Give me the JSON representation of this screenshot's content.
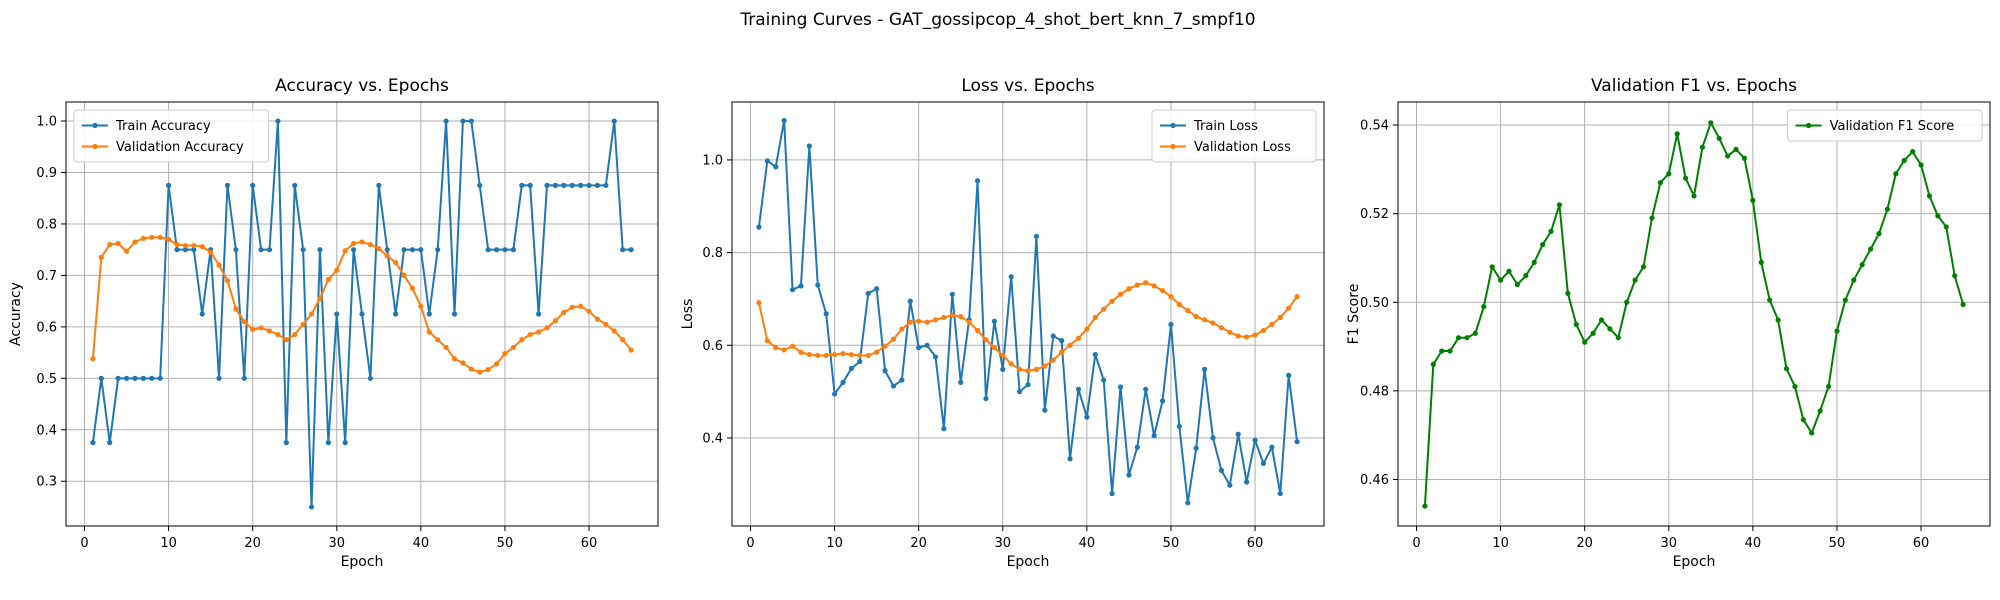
{
  "figure": {
    "suptitle": "Training Curves - GAT_gossipcop_4_shot_bert_knn_7_smpf10"
  },
  "colors": {
    "train": "#1f77b4",
    "validation": "#ff7f0e",
    "f1": "#008000",
    "grid": "#b0b0b0",
    "axes": "#000000"
  },
  "chart_data": [
    {
      "type": "line",
      "title": "Accuracy vs. Epochs",
      "xlabel": "Epoch",
      "ylabel": "Accuracy",
      "xlim": [
        -2.2,
        68.2
      ],
      "ylim": [
        0.213,
        1.037
      ],
      "xticks": [
        0,
        10,
        20,
        30,
        40,
        50,
        60
      ],
      "yticks": [
        0.3,
        0.4,
        0.5,
        0.6,
        0.7,
        0.8,
        0.9,
        1.0
      ],
      "ytick_labels": [
        "0.3",
        "0.4",
        "0.5",
        "0.6",
        "0.7",
        "0.8",
        "0.9",
        "1.0"
      ],
      "grid": true,
      "legend_position": "upper-left",
      "x": [
        1,
        2,
        3,
        4,
        5,
        6,
        7,
        8,
        9,
        10,
        11,
        12,
        13,
        14,
        15,
        16,
        17,
        18,
        19,
        20,
        21,
        22,
        23,
        24,
        25,
        26,
        27,
        28,
        29,
        30,
        31,
        32,
        33,
        34,
        35,
        36,
        37,
        38,
        39,
        40,
        41,
        42,
        43,
        44,
        45,
        46,
        47,
        48,
        49,
        50,
        51,
        52,
        53,
        54,
        55,
        56,
        57,
        58,
        59,
        60,
        61,
        62,
        63,
        64,
        65
      ],
      "series": [
        {
          "name": "Train Accuracy",
          "color": "#1f77b4",
          "values": [
            0.375,
            0.5,
            0.375,
            0.5,
            0.5,
            0.5,
            0.5,
            0.5,
            0.5,
            0.875,
            0.75,
            0.75,
            0.75,
            0.625,
            0.75,
            0.5,
            0.875,
            0.75,
            0.5,
            0.875,
            0.75,
            0.75,
            1.0,
            0.375,
            0.875,
            0.75,
            0.25,
            0.75,
            0.375,
            0.625,
            0.375,
            0.75,
            0.625,
            0.5,
            0.875,
            0.75,
            0.625,
            0.75,
            0.75,
            0.75,
            0.625,
            0.75,
            1.0,
            0.625,
            1.0,
            1.0,
            0.875,
            0.75,
            0.75,
            0.75,
            0.75,
            0.875,
            0.875,
            0.625,
            0.875,
            0.875,
            0.875,
            0.875,
            0.875,
            0.875,
            0.875,
            0.875,
            1.0,
            0.75,
            0.75
          ]
        },
        {
          "name": "Validation Accuracy",
          "color": "#ff7f0e",
          "values": [
            0.538,
            0.735,
            0.76,
            0.762,
            0.747,
            0.765,
            0.772,
            0.774,
            0.774,
            0.77,
            0.76,
            0.758,
            0.758,
            0.756,
            0.745,
            0.72,
            0.69,
            0.635,
            0.61,
            0.595,
            0.598,
            0.592,
            0.585,
            0.575,
            0.585,
            0.605,
            0.625,
            0.655,
            0.692,
            0.71,
            0.748,
            0.762,
            0.765,
            0.76,
            0.752,
            0.738,
            0.725,
            0.7,
            0.675,
            0.64,
            0.59,
            0.575,
            0.56,
            0.538,
            0.53,
            0.518,
            0.512,
            0.517,
            0.528,
            0.548,
            0.56,
            0.575,
            0.585,
            0.59,
            0.598,
            0.612,
            0.628,
            0.638,
            0.64,
            0.63,
            0.615,
            0.605,
            0.592,
            0.575,
            0.555
          ]
        }
      ]
    },
    {
      "type": "line",
      "title": "Loss vs. Epochs",
      "xlabel": "Epoch",
      "ylabel": "Loss",
      "xlim": [
        -2.2,
        68.2
      ],
      "ylim": [
        0.21,
        1.125
      ],
      "xticks": [
        0,
        10,
        20,
        30,
        40,
        50,
        60
      ],
      "yticks": [
        0.4,
        0.6,
        0.8,
        1.0
      ],
      "ytick_labels": [
        "0.4",
        "0.6",
        "0.8",
        "1.0"
      ],
      "grid": true,
      "legend_position": "upper-right",
      "x": [
        1,
        2,
        3,
        4,
        5,
        6,
        7,
        8,
        9,
        10,
        11,
        12,
        13,
        14,
        15,
        16,
        17,
        18,
        19,
        20,
        21,
        22,
        23,
        24,
        25,
        26,
        27,
        28,
        29,
        30,
        31,
        32,
        33,
        34,
        35,
        36,
        37,
        38,
        39,
        40,
        41,
        42,
        43,
        44,
        45,
        46,
        47,
        48,
        49,
        50,
        51,
        52,
        53,
        54,
        55,
        56,
        57,
        58,
        59,
        60,
        61,
        62,
        63,
        64,
        65
      ],
      "series": [
        {
          "name": "Train Loss",
          "color": "#1f77b4",
          "values": [
            0.855,
            0.998,
            0.985,
            1.085,
            0.72,
            0.728,
            1.03,
            0.73,
            0.668,
            0.495,
            0.52,
            0.55,
            0.565,
            0.712,
            0.722,
            0.545,
            0.512,
            0.525,
            0.695,
            0.595,
            0.6,
            0.575,
            0.42,
            0.71,
            0.52,
            0.655,
            0.955,
            0.485,
            0.652,
            0.548,
            0.748,
            0.5,
            0.515,
            0.835,
            0.46,
            0.62,
            0.61,
            0.355,
            0.505,
            0.445,
            0.58,
            0.525,
            0.28,
            0.51,
            0.32,
            0.38,
            0.505,
            0.405,
            0.48,
            0.645,
            0.425,
            0.26,
            0.378,
            0.548,
            0.4,
            0.33,
            0.298,
            0.408,
            0.305,
            0.395,
            0.345,
            0.38,
            0.28,
            0.535,
            0.392
          ]
        },
        {
          "name": "Validation Loss",
          "color": "#ff7f0e",
          "values": [
            0.692,
            0.61,
            0.595,
            0.59,
            0.598,
            0.585,
            0.58,
            0.578,
            0.578,
            0.58,
            0.582,
            0.58,
            0.578,
            0.578,
            0.585,
            0.598,
            0.613,
            0.635,
            0.65,
            0.652,
            0.65,
            0.655,
            0.66,
            0.665,
            0.662,
            0.65,
            0.632,
            0.612,
            0.595,
            0.578,
            0.56,
            0.548,
            0.545,
            0.548,
            0.555,
            0.568,
            0.585,
            0.6,
            0.615,
            0.635,
            0.66,
            0.678,
            0.695,
            0.71,
            0.722,
            0.73,
            0.735,
            0.728,
            0.718,
            0.705,
            0.688,
            0.675,
            0.662,
            0.655,
            0.648,
            0.638,
            0.628,
            0.62,
            0.618,
            0.622,
            0.632,
            0.645,
            0.66,
            0.68,
            0.705
          ]
        }
      ]
    },
    {
      "type": "line",
      "title": "Validation F1 vs. Epochs",
      "xlabel": "Epoch",
      "ylabel": "F1 Score",
      "xlim": [
        -2.2,
        68.2
      ],
      "ylim": [
        0.4495,
        0.5452
      ],
      "xticks": [
        0,
        10,
        20,
        30,
        40,
        50,
        60
      ],
      "yticks": [
        0.46,
        0.48,
        0.5,
        0.52,
        0.54
      ],
      "ytick_labels": [
        "0.46",
        "0.48",
        "0.50",
        "0.52",
        "0.54"
      ],
      "grid": true,
      "legend_position": "upper-right",
      "x": [
        1,
        2,
        3,
        4,
        5,
        6,
        7,
        8,
        9,
        10,
        11,
        12,
        13,
        14,
        15,
        16,
        17,
        18,
        19,
        20,
        21,
        22,
        23,
        24,
        25,
        26,
        27,
        28,
        29,
        30,
        31,
        32,
        33,
        34,
        35,
        36,
        37,
        38,
        39,
        40,
        41,
        42,
        43,
        44,
        45,
        46,
        47,
        48,
        49,
        50,
        51,
        52,
        53,
        54,
        55,
        56,
        57,
        58,
        59,
        60,
        61,
        62,
        63,
        64,
        65
      ],
      "series": [
        {
          "name": "Validation F1 Score",
          "color": "#008000",
          "values": [
            0.454,
            0.486,
            0.489,
            0.489,
            0.492,
            0.492,
            0.493,
            0.499,
            0.508,
            0.505,
            0.507,
            0.504,
            0.506,
            0.509,
            0.513,
            0.516,
            0.522,
            0.502,
            0.495,
            0.491,
            0.493,
            0.496,
            0.494,
            0.492,
            0.5,
            0.505,
            0.508,
            0.519,
            0.527,
            0.529,
            0.538,
            0.528,
            0.524,
            0.535,
            0.5405,
            0.537,
            0.533,
            0.5345,
            0.5325,
            0.523,
            0.509,
            0.5005,
            0.496,
            0.485,
            0.481,
            0.4735,
            0.4705,
            0.4755,
            0.481,
            0.4935,
            0.5005,
            0.505,
            0.5085,
            0.512,
            0.5155,
            0.521,
            0.529,
            0.532,
            0.534,
            0.531,
            0.524,
            0.5195,
            0.517,
            0.506,
            0.4995
          ]
        }
      ]
    }
  ]
}
